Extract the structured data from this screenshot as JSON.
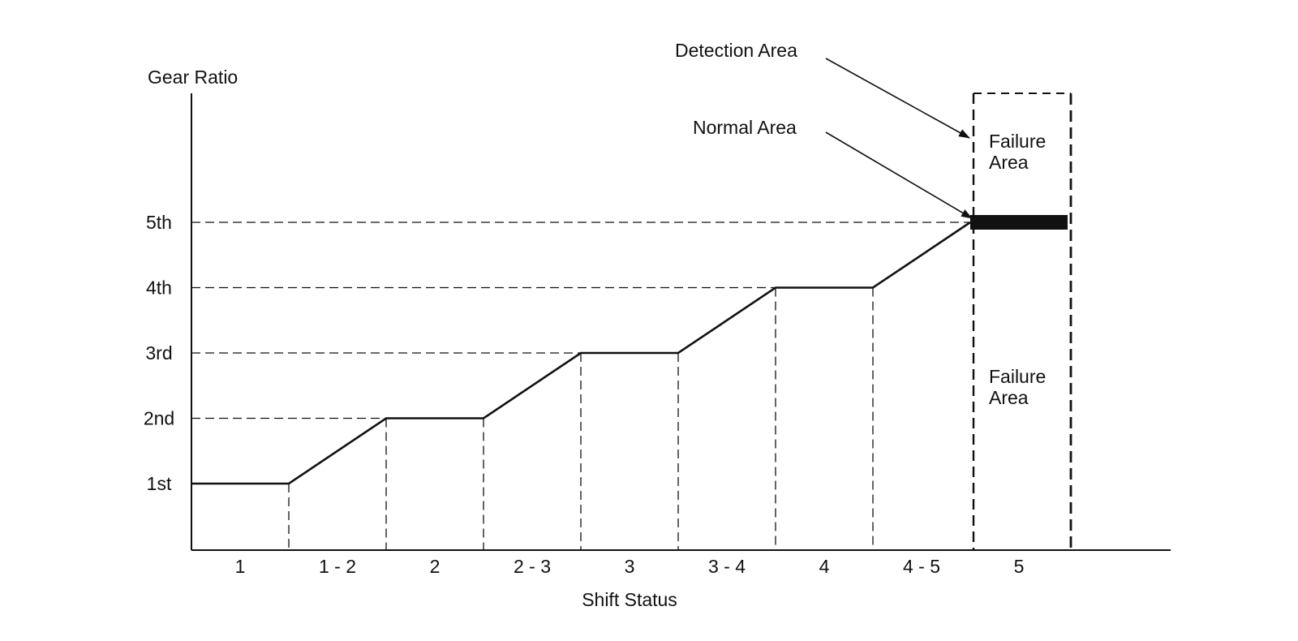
{
  "chart_data": {
    "type": "line",
    "title": "",
    "ylabel": "Gear Ratio",
    "xlabel": "Shift Status",
    "y_ticks": [
      "1st",
      "2nd",
      "3rd",
      "4th",
      "5th"
    ],
    "x_categories": [
      "1",
      "1 - 2",
      "2",
      "2 - 3",
      "3",
      "3 - 4",
      "4",
      "4 - 5",
      "5"
    ],
    "profile": [
      {
        "x": 0,
        "y": 1
      },
      {
        "x": 1,
        "y": 1
      },
      {
        "x": 2,
        "y": 2
      },
      {
        "x": 3,
        "y": 2
      },
      {
        "x": 4,
        "y": 3
      },
      {
        "x": 5,
        "y": 3
      },
      {
        "x": 6,
        "y": 4
      },
      {
        "x": 7,
        "y": 4
      },
      {
        "x": 8,
        "y": 5
      }
    ],
    "normal_band": {
      "x_start": 8,
      "x_end": 9,
      "y": 5
    },
    "annotations": {
      "detection_area": "Detection Area",
      "normal_area": "Normal Area",
      "failure_area_upper": [
        "Failure",
        "Area"
      ],
      "failure_area_lower": [
        "Failure",
        "Area"
      ]
    },
    "colors": {
      "ink": "#111111",
      "background": "#ffffff"
    }
  }
}
